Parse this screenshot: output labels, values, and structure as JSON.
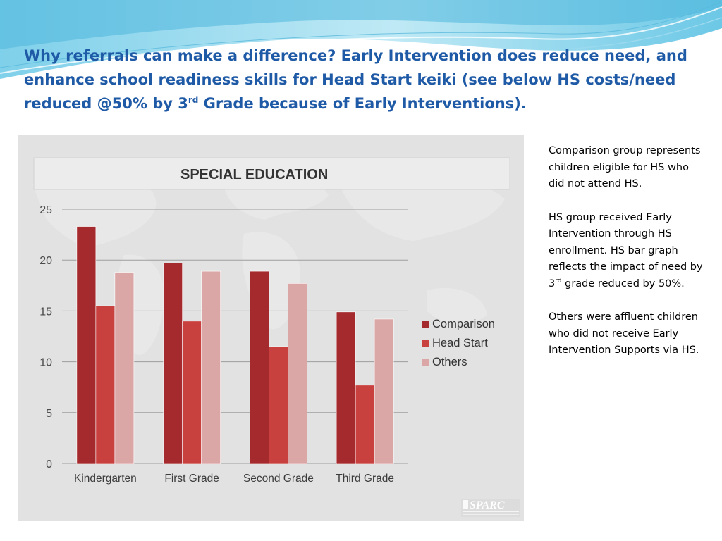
{
  "slide": {
    "title_part1": "Why referrals can make a difference?  Early Intervention does reduce need, and enhance school readiness skills for Head Start keiki (see below HS costs/need reduced @50% by 3",
    "title_sup": "rd",
    "title_part2": " Grade because of Early Interventions).",
    "notes": {
      "p1": "Comparison group represents children eligible for HS who did not attend HS.",
      "p2_part1": "HS group received Early Intervention through HS enrollment. HS bar graph reflects the impact of need by 3",
      "p2_sup": "rd",
      "p2_part2": " grade reduced  by 50%.",
      "p3": "Others were affluent children who did not receive Early Intervention Supports via HS."
    },
    "logo_text": "SPARC"
  },
  "chart_data": {
    "type": "bar",
    "title": "SPECIAL EDUCATION",
    "categories": [
      "Kindergarten",
      "First Grade",
      "Second Grade",
      "Third Grade"
    ],
    "series": [
      {
        "name": "Comparison",
        "values": [
          23.3,
          19.7,
          18.9,
          14.9
        ],
        "color": "#a52a2e"
      },
      {
        "name": "Head Start",
        "values": [
          15.5,
          14.0,
          11.5,
          7.7
        ],
        "color": "#c8413f"
      },
      {
        "name": "Others",
        "values": [
          18.8,
          18.9,
          17.7,
          14.2
        ],
        "color": "#dba6a6"
      }
    ],
    "ylim": [
      0,
      25
    ],
    "yticks": [
      "0",
      "5",
      "10",
      "15",
      "20",
      "25"
    ],
    "xlabel": "",
    "ylabel": "",
    "grid": true,
    "legend_position": "right"
  }
}
